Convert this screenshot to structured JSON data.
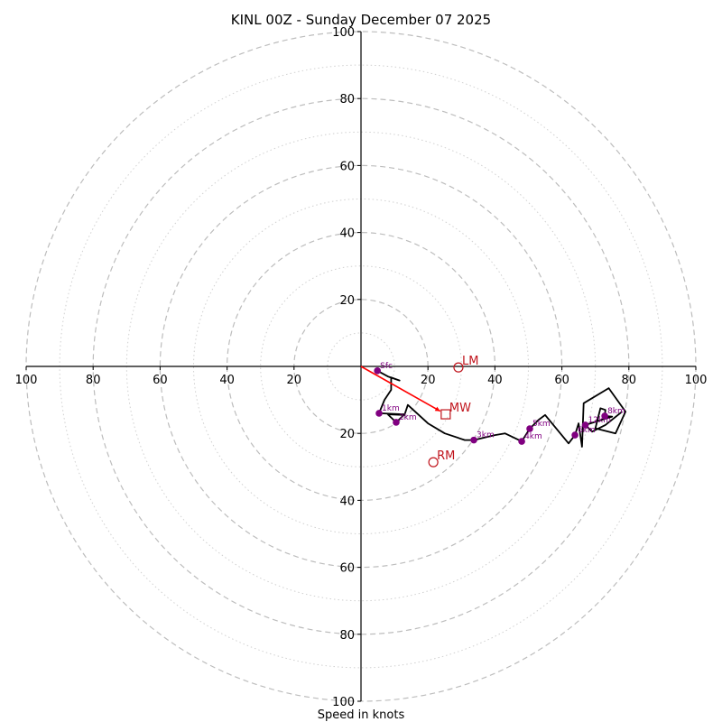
{
  "chart_data": {
    "type": "line",
    "subtype": "hodograph",
    "title": "KINL 00Z - Sunday December 07 2025",
    "xlabel": "Speed in knots",
    "ylabel": "",
    "xlim": [
      -100,
      100
    ],
    "ylim": [
      -100,
      100
    ],
    "major_rings": [
      20,
      40,
      60,
      80,
      100
    ],
    "minor_rings": [
      10,
      30,
      50,
      70,
      90
    ],
    "x_ticks": [
      100,
      80,
      60,
      40,
      20,
      20,
      40,
      60,
      80,
      100
    ],
    "x_tick_values": [
      -100,
      -80,
      -60,
      -40,
      -20,
      20,
      40,
      60,
      80,
      100
    ],
    "y_ticks": [
      100,
      80,
      60,
      40,
      20,
      20,
      40,
      60,
      80,
      100
    ],
    "y_tick_values": [
      100,
      80,
      60,
      40,
      20,
      -20,
      -40,
      -60,
      -80,
      -100
    ],
    "grid": true,
    "trace": {
      "name": "wind profile",
      "color": "#000000",
      "points": [
        [
          4.9,
          -1.3
        ],
        [
          8,
          -3
        ],
        [
          11.5,
          -4.2
        ],
        [
          9,
          -3.3
        ],
        [
          9,
          -7
        ],
        [
          7,
          -10
        ],
        [
          5.4,
          -14
        ],
        [
          13,
          -14.3
        ],
        [
          10.5,
          -16.7
        ],
        [
          8,
          -14.3
        ],
        [
          13,
          -14.5
        ],
        [
          14,
          -11.5
        ],
        [
          20,
          -17
        ],
        [
          25,
          -20
        ],
        [
          31,
          -22
        ],
        [
          33.7,
          -22
        ],
        [
          40,
          -20.5
        ],
        [
          43,
          -20
        ],
        [
          48,
          -22.4
        ],
        [
          50.4,
          -18.6
        ],
        [
          53,
          -16
        ],
        [
          55,
          -14.5
        ],
        [
          62,
          -23
        ],
        [
          63.9,
          -20.5
        ],
        [
          65,
          -17
        ],
        [
          66,
          -24
        ],
        [
          66.5,
          -11
        ],
        [
          74,
          -6.5
        ],
        [
          79,
          -13.5
        ],
        [
          76,
          -20
        ],
        [
          70,
          -18.5
        ],
        [
          71.5,
          -12.5
        ],
        [
          73,
          -13
        ],
        [
          72.8,
          -14.8
        ],
        [
          75,
          -15
        ],
        [
          67,
          -17.5
        ],
        [
          69,
          -19.5
        ],
        [
          73,
          -17.5
        ],
        [
          78,
          -13.5
        ]
      ]
    },
    "height_markers": {
      "color": "#800080",
      "points": [
        {
          "label": "Sfc",
          "u": 4.9,
          "v": -1.3
        },
        {
          "label": "1km",
          "u": 5.4,
          "v": -14.0
        },
        {
          "label": "2km",
          "u": 10.5,
          "v": -16.7
        },
        {
          "label": "3km",
          "u": 33.7,
          "v": -22.0
        },
        {
          "label": "4km",
          "u": 48.0,
          "v": -22.4
        },
        {
          "label": "5km",
          "u": 50.4,
          "v": -18.6
        },
        {
          "label": "6km",
          "u": 63.9,
          "v": -20.5
        },
        {
          "label": "8km",
          "u": 72.8,
          "v": -14.8
        },
        {
          "label": "12km",
          "u": 67.0,
          "v": -17.5
        }
      ]
    },
    "storm_motion": {
      "color": "#c0141c",
      "mean_wind": {
        "label": "MW",
        "u": 25.3,
        "v": -14.3,
        "marker": "square"
      },
      "left_mover": {
        "label": "LM",
        "u": 29.1,
        "v": -0.3,
        "marker": "circle"
      },
      "right_mover": {
        "label": "RM",
        "u": 21.6,
        "v": -28.6,
        "marker": "circle"
      },
      "vector_color": "#ff0000"
    }
  }
}
